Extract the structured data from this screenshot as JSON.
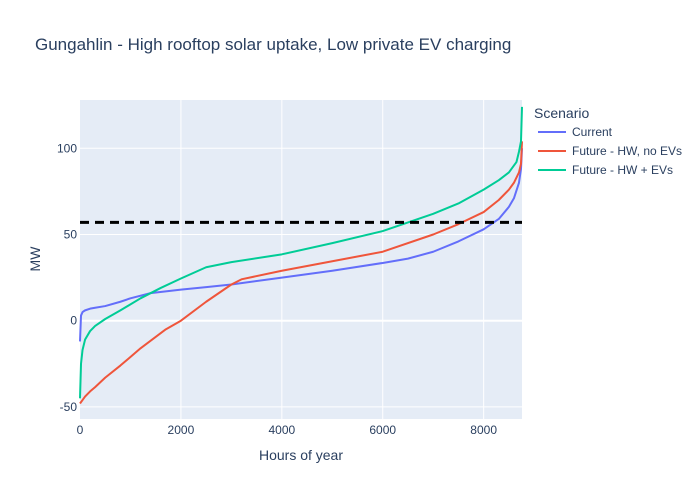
{
  "chart_data": {
    "type": "line",
    "title": "Gungahlin - High rooftop solar uptake, Low private EV charging",
    "xlabel": "Hours of year",
    "ylabel": "MW",
    "xlim": [
      0,
      8760
    ],
    "ylim": [
      -57,
      128
    ],
    "x_ticks": [
      0,
      2000,
      4000,
      6000,
      8000
    ],
    "y_ticks": [
      -50,
      0,
      50,
      100
    ],
    "grid": true,
    "legend": {
      "title": "Scenario",
      "placement": "right"
    },
    "reference_line": {
      "y": 57,
      "style": "dashed",
      "color": "#000000"
    },
    "series": [
      {
        "name": "Current",
        "color": "#636efa",
        "x": [
          0,
          20,
          50,
          100,
          200,
          300,
          500,
          800,
          1000,
          1400,
          2000,
          2500,
          3000,
          4000,
          5000,
          6000,
          6500,
          7000,
          7500,
          8000,
          8300,
          8500,
          8600,
          8700,
          8740,
          8760
        ],
        "y": [
          -12,
          3,
          5,
          6,
          7,
          7.5,
          8.5,
          11,
          13,
          16,
          18,
          19.5,
          21,
          25,
          29,
          33.5,
          36,
          40,
          46,
          53,
          59,
          66,
          71,
          80,
          88,
          100
        ]
      },
      {
        "name": "Future - HW, no EVs",
        "color": "#ef553b",
        "x": [
          0,
          50,
          100,
          200,
          300,
          500,
          800,
          1200,
          1700,
          2000,
          2500,
          3000,
          3200,
          4000,
          5000,
          6000,
          7000,
          7500,
          8000,
          8300,
          8500,
          8600,
          8700,
          8740,
          8760
        ],
        "y": [
          -48,
          -46,
          -44,
          -41,
          -38.5,
          -33,
          -26,
          -16,
          -5,
          0,
          11,
          21,
          24,
          29,
          34.5,
          40,
          50,
          56,
          63,
          70,
          76,
          80,
          86,
          91,
          104
        ]
      },
      {
        "name": "Future - HW + EVs",
        "color": "#00cc96",
        "x": [
          0,
          20,
          50,
          100,
          200,
          300,
          500,
          800,
          1200,
          1600,
          2000,
          2500,
          3000,
          4000,
          5000,
          6000,
          6500,
          7000,
          7500,
          8000,
          8300,
          8500,
          8650,
          8700,
          8740,
          8760
        ],
        "y": [
          -45,
          -25,
          -17,
          -11,
          -6,
          -3,
          1,
          6,
          13,
          19,
          24.5,
          31,
          34,
          38.5,
          45,
          52,
          57,
          62,
          68,
          76,
          81.5,
          86,
          92,
          98,
          104,
          124
        ]
      }
    ]
  }
}
